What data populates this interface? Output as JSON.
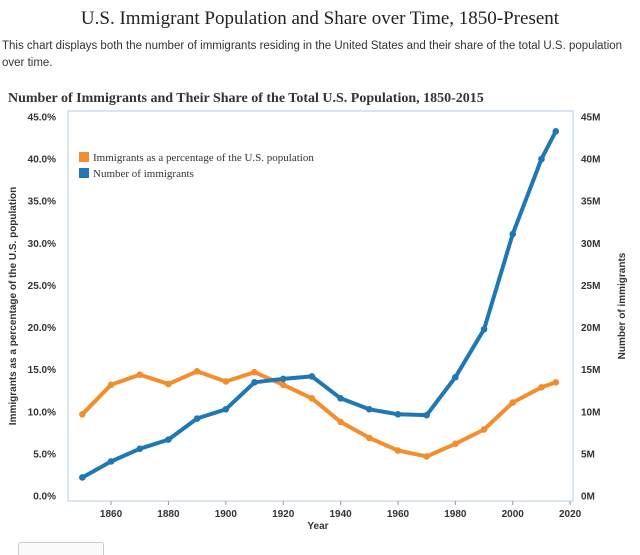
{
  "page": {
    "title": "U.S. Immigrant Population and Share over Time, 1850-Present",
    "description": "This chart displays both the number of immigrants residing in the United States and their share of the total U.S. population over time."
  },
  "chart_data": {
    "type": "line",
    "title": "Number of Immigrants and Their Share of the Total U.S. Population, 1850-2015",
    "xlabel": "Year",
    "ylabel_left": "Immigrants as a percentage of the U.S. population",
    "ylabel_right": "Number of immigrants",
    "x": [
      1850,
      1860,
      1870,
      1880,
      1890,
      1900,
      1910,
      1920,
      1930,
      1940,
      1950,
      1960,
      1970,
      1980,
      1990,
      2000,
      2010,
      2015
    ],
    "x_ticks": [
      "1860",
      "1880",
      "1900",
      "1920",
      "1940",
      "1960",
      "1980",
      "2000",
      "2020"
    ],
    "xlim": [
      1845,
      2021
    ],
    "y_left_ticks": [
      "0.0%",
      "5.0%",
      "10.0%",
      "15.0%",
      "20.0%",
      "25.0%",
      "30.0%",
      "35.0%",
      "40.0%",
      "45.0%"
    ],
    "y_left_lim": [
      0,
      45
    ],
    "y_right_ticks": [
      "0M",
      "5M",
      "10M",
      "15M",
      "20M",
      "25M",
      "30M",
      "35M",
      "40M",
      "45M"
    ],
    "y_right_lim": [
      0,
      45
    ],
    "legend_placement": "top-left",
    "grid": false,
    "series": [
      {
        "name": "Immigrants as a percentage of the U.S. population",
        "axis": "left",
        "color": "#F28E2B",
        "values": [
          9.7,
          13.2,
          14.4,
          13.3,
          14.8,
          13.6,
          14.7,
          13.2,
          11.6,
          8.8,
          6.9,
          5.4,
          4.7,
          6.2,
          7.9,
          11.1,
          12.9,
          13.5
        ]
      },
      {
        "name": "Number of immigrants",
        "axis": "right",
        "color": "#1F77B4",
        "values": [
          2.2,
          4.1,
          5.6,
          6.7,
          9.2,
          10.3,
          13.5,
          13.9,
          14.2,
          11.6,
          10.3,
          9.7,
          9.6,
          14.1,
          19.8,
          31.1,
          40.0,
          43.3
        ]
      }
    ]
  }
}
